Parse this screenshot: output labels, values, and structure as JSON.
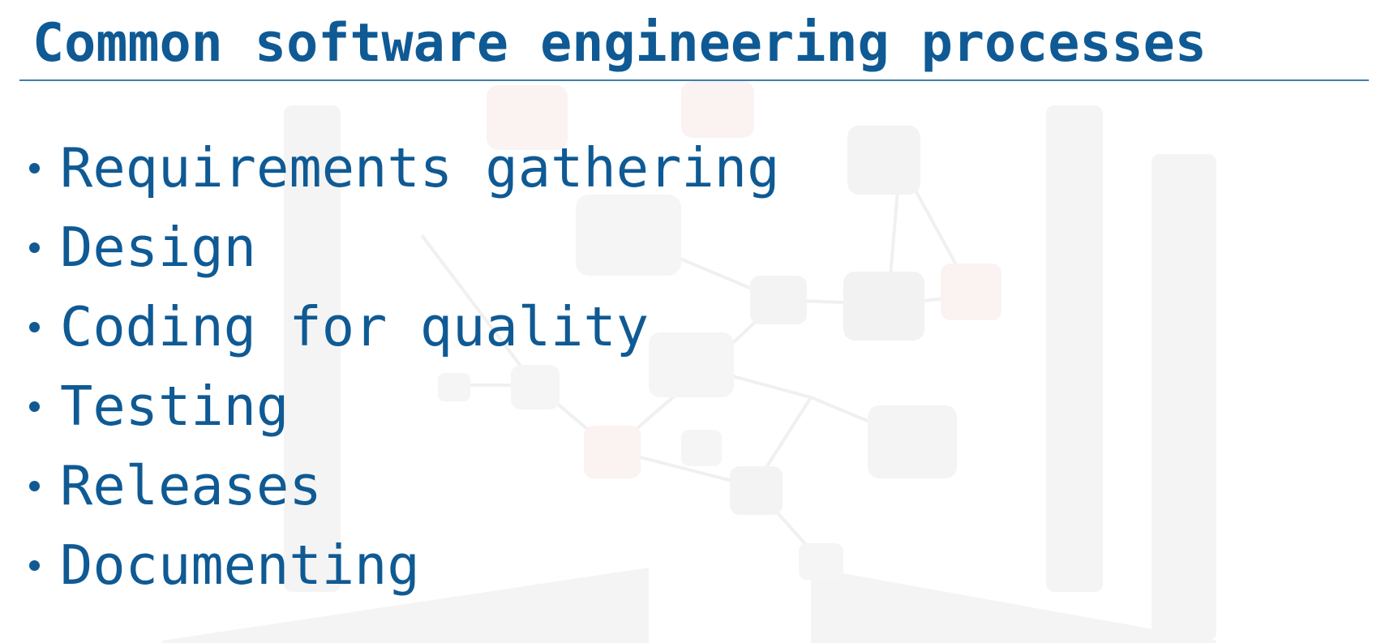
{
  "slide": {
    "title": "Common software engineering processes",
    "accent_color": "#0f5a94",
    "rule_color": "#3f7fae",
    "items": [
      {
        "label": "Requirements gathering"
      },
      {
        "label": "Design"
      },
      {
        "label": "Coding for quality"
      },
      {
        "label": "Testing"
      },
      {
        "label": "Releases"
      },
      {
        "label": "Documenting"
      }
    ]
  }
}
